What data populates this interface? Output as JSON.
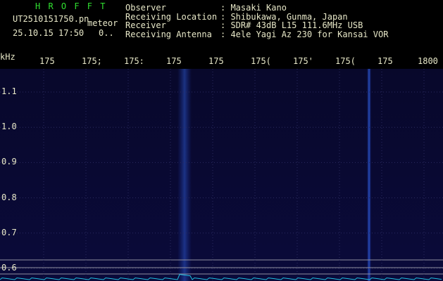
{
  "header": {
    "app": "H R O F F T",
    "file": "UT2510151750.pn",
    "mode": "meteor",
    "datetime": "25.10.15 17:50",
    "counter": "0..",
    "info": [
      {
        "label": "Observer",
        "value": ": Masaki Kano"
      },
      {
        "label": "Receiving Location",
        "value": ": Shibukawa, Gunma, Japan"
      },
      {
        "label": "Receiver",
        "value": ": SDR# 43dB L15 111.6MHz USB"
      },
      {
        "label": "Receiving Antenna",
        "value": ": 4ele Yagi Az 230 for Kansai VOR"
      }
    ]
  },
  "spectrogram": {
    "x_labels": [
      "175",
      "175;",
      "175:",
      "175",
      "175",
      "175(",
      "175'",
      "175(",
      "175",
      "1800"
    ],
    "y_unit": "kHz",
    "y_labels": [
      "1.1",
      "1.0",
      "0.9",
      "0.8",
      "0.7",
      "0.6"
    ]
  }
}
